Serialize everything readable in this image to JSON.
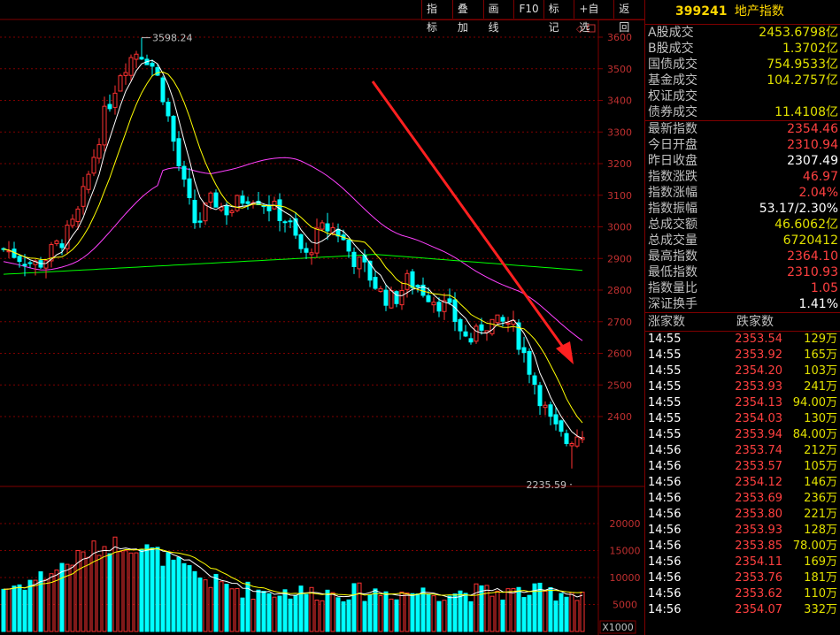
{
  "toolbar": {
    "buttons": [
      "指标",
      "叠加",
      "画线",
      "F10",
      "标记",
      "+自选",
      "返回"
    ]
  },
  "chart": {
    "price_ticks": [
      "3600",
      "3500",
      "3400",
      "3300",
      "3200",
      "3100",
      "3000",
      "2900",
      "2800",
      "2700",
      "2600",
      "2500",
      "2400"
    ],
    "volume_ticks": [
      "20000",
      "15000",
      "10000",
      "5000"
    ],
    "volume_unit": "X1000",
    "high_label": "3598.24",
    "low_label": "2235.59",
    "colors": {
      "up": "#ff3232",
      "down": "#00ffff",
      "ma5": "#ffffff",
      "ma10": "#ffff00",
      "ma60": "#ff40ff",
      "ma120": "#00ff00",
      "arrow": "#ff2020",
      "grid": "#800000"
    }
  },
  "chart_data": {
    "type": "candlestick",
    "price_range": [
      2235.59,
      3598.24
    ],
    "grid": true,
    "close_trend": [
      2930,
      2920,
      2905,
      2890,
      2880,
      2900,
      2930,
      2960,
      2990,
      3050,
      3150,
      3250,
      3350,
      3420,
      3500,
      3530,
      3560,
      3540,
      3500,
      3420,
      3300,
      3180,
      3080,
      3000,
      3050,
      3090,
      3060,
      3050,
      3080,
      3100,
      3100,
      3080,
      3060,
      3040,
      3010,
      2950,
      2900,
      2960,
      2990,
      3000,
      2980,
      2930,
      2890,
      2870,
      2830,
      2790,
      2770,
      2780,
      2830,
      2820,
      2800,
      2780,
      2760,
      2740,
      2700,
      2650,
      2640,
      2690,
      2700,
      2690,
      2700,
      2670,
      2600,
      2530,
      2460,
      2390,
      2350,
      2320,
      2340,
      2354
    ]
  },
  "panel": {
    "code": "399241",
    "name": "地产指数",
    "volumes": [
      {
        "label": "A股成交",
        "value": "2453.6798亿"
      },
      {
        "label": "B股成交",
        "value": "1.3702亿"
      },
      {
        "label": "国债成交",
        "value": "754.9533亿"
      },
      {
        "label": "基金成交",
        "value": "104.2757亿"
      },
      {
        "label": "权证成交",
        "value": ""
      },
      {
        "label": "债券成交",
        "value": "11.4108亿"
      }
    ],
    "stats": [
      {
        "label": "最新指数",
        "value": "2354.46",
        "color": "red"
      },
      {
        "label": "今日开盘",
        "value": "2310.94",
        "color": "red"
      },
      {
        "label": "昨日收盘",
        "value": "2307.49",
        "color": "wht"
      },
      {
        "label": "指数涨跌",
        "value": "46.97",
        "color": "red"
      },
      {
        "label": "指数涨幅",
        "value": "2.04%",
        "color": "red"
      },
      {
        "label": "指数振幅",
        "value": "53.17/2.30%",
        "color": "wht"
      },
      {
        "label": "总成交额",
        "value": "46.6062亿",
        "color": "yel"
      },
      {
        "label": "总成交量",
        "value": "6720412",
        "color": "yel"
      },
      {
        "label": "最高指数",
        "value": "2364.10",
        "color": "red"
      },
      {
        "label": "最低指数",
        "value": "2310.93",
        "color": "red"
      },
      {
        "label": "指数量比",
        "value": "1.05",
        "color": "red"
      },
      {
        "label": "深证换手",
        "value": "1.41%",
        "color": "wht"
      }
    ],
    "tick_header": {
      "up": "涨家数",
      "down": "跌家数"
    },
    "ticks": [
      {
        "t": "14:55",
        "p": "2353.54",
        "v": "129万"
      },
      {
        "t": "14:55",
        "p": "2353.92",
        "v": "165万"
      },
      {
        "t": "14:55",
        "p": "2354.20",
        "v": "103万"
      },
      {
        "t": "14:55",
        "p": "2353.93",
        "v": "241万"
      },
      {
        "t": "14:55",
        "p": "2354.13",
        "v": "94.00万"
      },
      {
        "t": "14:55",
        "p": "2354.03",
        "v": "130万"
      },
      {
        "t": "14:55",
        "p": "2353.94",
        "v": "84.00万"
      },
      {
        "t": "14:56",
        "p": "2353.74",
        "v": "212万"
      },
      {
        "t": "14:56",
        "p": "2353.57",
        "v": "105万"
      },
      {
        "t": "14:56",
        "p": "2354.12",
        "v": "146万"
      },
      {
        "t": "14:56",
        "p": "2353.69",
        "v": "236万"
      },
      {
        "t": "14:56",
        "p": "2353.80",
        "v": "221万"
      },
      {
        "t": "14:56",
        "p": "2353.93",
        "v": "128万"
      },
      {
        "t": "14:56",
        "p": "2353.85",
        "v": "78.00万"
      },
      {
        "t": "14:56",
        "p": "2354.11",
        "v": "169万"
      },
      {
        "t": "14:56",
        "p": "2353.76",
        "v": "181万"
      },
      {
        "t": "14:56",
        "p": "2353.62",
        "v": "110万"
      },
      {
        "t": "14:56",
        "p": "2354.07",
        "v": "332万"
      }
    ]
  }
}
